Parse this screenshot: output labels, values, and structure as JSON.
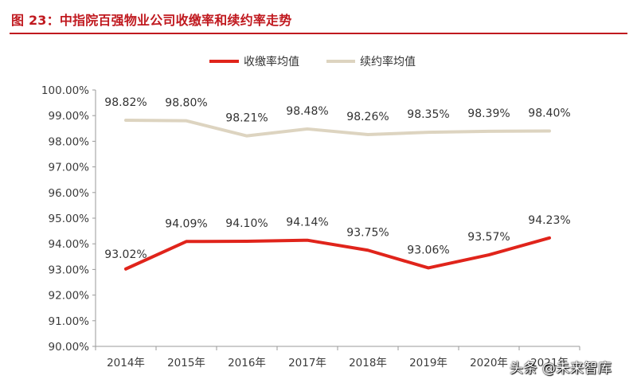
{
  "figure_title": "图 23：中指院百强物业公司收缴率和续约率走势",
  "watermark": "头条 @未来智库",
  "colors": {
    "title": "#c0191f",
    "collection": "#e0241b",
    "renewal": "#ddd4c0",
    "axis": "#9a9a9a"
  },
  "chart_data": {
    "type": "line",
    "categories": [
      "2014年",
      "2015年",
      "2016年",
      "2017年",
      "2018年",
      "2019年",
      "2020年",
      "2021年"
    ],
    "series": [
      {
        "name": "收缴率均值",
        "values": [
          93.02,
          94.09,
          94.1,
          94.14,
          93.75,
          93.06,
          93.57,
          94.23
        ],
        "labels": [
          "93.02%",
          "94.09%",
          "94.10%",
          "94.14%",
          "93.75%",
          "93.06%",
          "93.57%",
          "94.23%"
        ]
      },
      {
        "name": "续约率均值",
        "values": [
          98.82,
          98.8,
          98.21,
          98.48,
          98.26,
          98.35,
          98.39,
          98.4
        ],
        "labels": [
          "98.82%",
          "98.80%",
          "98.21%",
          "98.48%",
          "98.26%",
          "98.35%",
          "98.39%",
          "98.40%"
        ]
      }
    ],
    "ylim": [
      90,
      100
    ],
    "yticks": [
      "90.00%",
      "91.00%",
      "92.00%",
      "93.00%",
      "94.00%",
      "95.00%",
      "96.00%",
      "97.00%",
      "98.00%",
      "99.00%",
      "100.00%"
    ],
    "grid": false,
    "legend_position": "top-center"
  }
}
